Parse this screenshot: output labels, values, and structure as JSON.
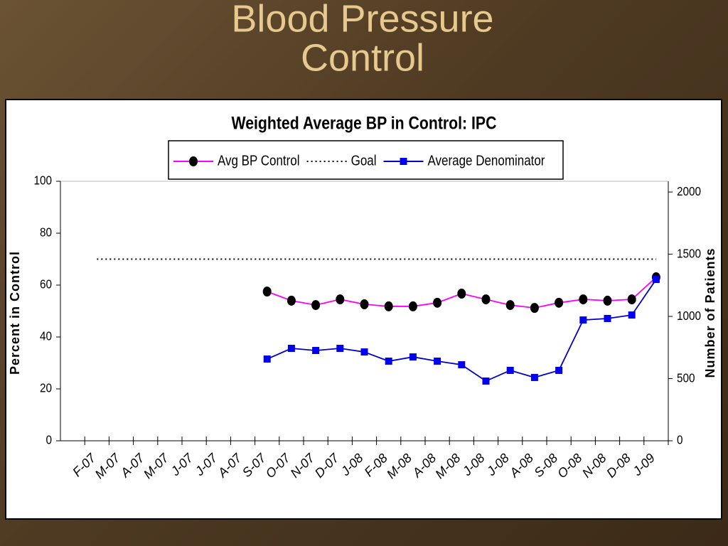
{
  "slide": {
    "title": [
      "Blood Pressure",
      "Control"
    ]
  },
  "chart_data": {
    "type": "line",
    "title": "Weighted Average BP in Control: IPC",
    "categories": [
      null,
      "F-07",
      "M-07",
      "A-07",
      "M-07",
      "J-07",
      "J-07",
      "A-07",
      "S-07",
      "O-07",
      "N-07",
      "D-07",
      "J-08",
      "F-08",
      "M-08",
      "A-08",
      "M-08",
      "J-08",
      "J-08",
      "A-08",
      "S-08",
      "O-08",
      "N-08",
      "D-08",
      "J-09"
    ],
    "y_label": "Percent in Control",
    "y2_label": "Number of Patients",
    "ylim": [
      0,
      100
    ],
    "yticks": [
      0,
      20,
      40,
      60,
      80,
      100
    ],
    "y2lim": [
      0,
      2086
    ],
    "y2ticks": [
      0,
      500,
      1000,
      1500,
      2000
    ],
    "legend": "top",
    "series": [
      {
        "name": "Avg BP Control",
        "color": "#ff00ff",
        "marker": "circle",
        "marker_color": "#000000",
        "style": "solid",
        "values": [
          null,
          null,
          null,
          null,
          null,
          null,
          null,
          null,
          57.5,
          54,
          52.3,
          54.5,
          52.6,
          51.8,
          51.8,
          53.2,
          56.7,
          54.5,
          52.3,
          51.2,
          53.2,
          54.5,
          54,
          54.5,
          63
        ]
      },
      {
        "name": "Goal",
        "color": "#000000",
        "marker": null,
        "style": "dotted",
        "values": [
          null,
          70,
          70,
          70,
          70,
          70,
          70,
          70,
          70,
          70,
          70,
          70,
          70,
          70,
          70,
          70,
          70,
          70,
          70,
          70,
          70,
          70,
          70,
          70,
          70
        ]
      },
      {
        "name": "Average Denominator",
        "color": "#0000cc",
        "marker": "square",
        "marker_color": "#0000ee",
        "style": "solid",
        "axis": "y2",
        "values": [
          null,
          null,
          null,
          null,
          null,
          null,
          null,
          null,
          657,
          743,
          726,
          743,
          714,
          640,
          674,
          640,
          611,
          480,
          566,
          509,
          566,
          971,
          983,
          1011,
          1297
        ]
      }
    ]
  }
}
